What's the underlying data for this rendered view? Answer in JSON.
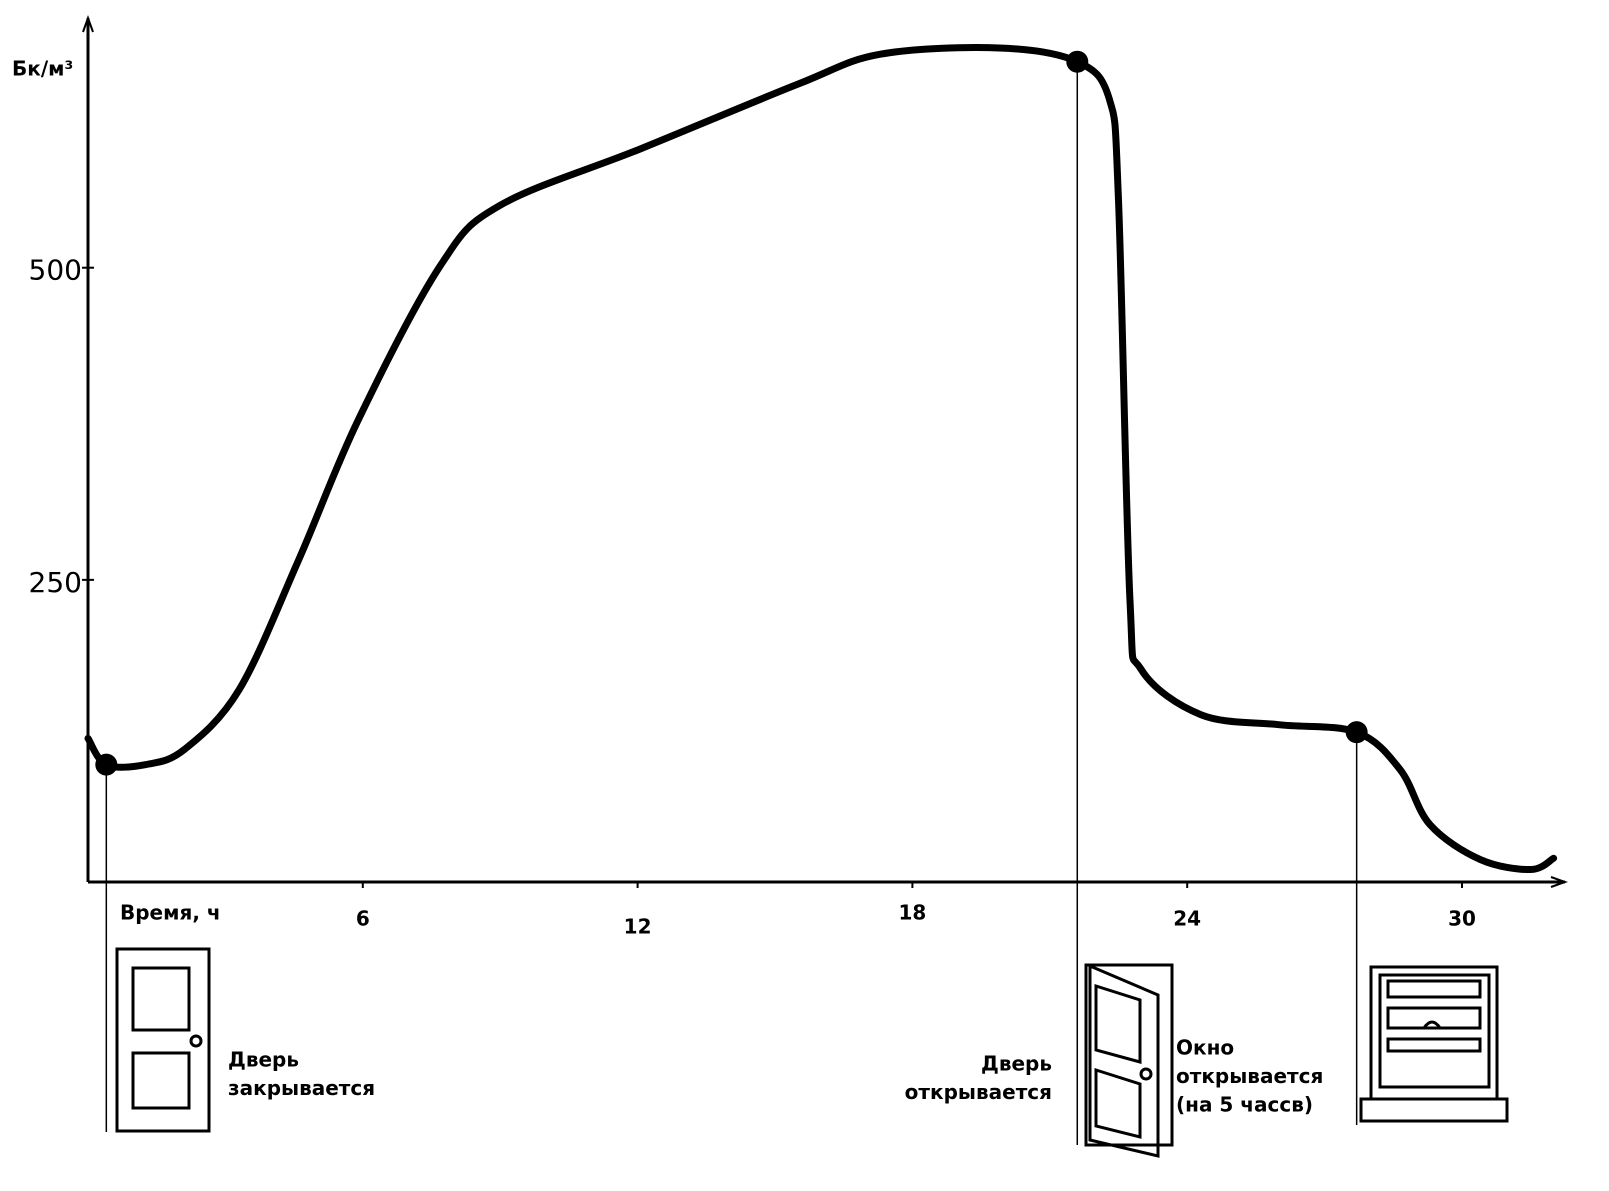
{
  "chart_data": {
    "type": "line",
    "y_label": "Бк/м³",
    "x_label": "Время, ч",
    "x": [
      0,
      0.4,
      1.25,
      2.1,
      3.3,
      4.6,
      5.9,
      7.7,
      9.0,
      12.05,
      15.5,
      17.3,
      19.9,
      21.6,
      22.3,
      22.5,
      22.75,
      23.0,
      24.3,
      26.0,
      27.7,
      28.65,
      29.3,
      30.4,
      31.5,
      32
    ],
    "series": [
      {
        "color": "#000000",
        "values": [
          123,
          102,
          102,
          114,
          162,
          266,
          378,
          502,
          550,
          595,
          647,
          671,
          676,
          665,
          635,
          554,
          234,
          178,
          142,
          134,
          128,
          98,
          54,
          26,
          18,
          27
        ]
      }
    ],
    "xlim": [
      0,
      32
    ],
    "xticks": [
      6,
      12,
      18,
      24,
      30
    ],
    "ylim": [
      0,
      700
    ],
    "yticks": [
      250,
      500
    ],
    "events": [
      {
        "x": 0.4,
        "y": 102,
        "label": [
          "Дверь",
          "закрывается"
        ]
      },
      {
        "x": 21.6,
        "y": 665,
        "label": [
          "Дверь",
          "открывается"
        ]
      },
      {
        "x": 27.7,
        "y": 128,
        "label": [
          "Окно",
          "открывается",
          "(на 5 чассв)"
        ]
      }
    ]
  }
}
